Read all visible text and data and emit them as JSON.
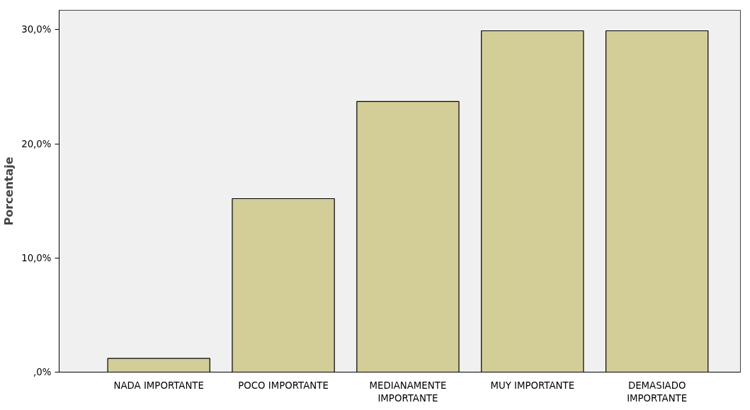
{
  "chart_data": {
    "type": "bar",
    "ylabel": "Porcentaje",
    "categories": [
      "NADA IMPORTANTE",
      "POCO IMPORTANTE",
      "MEDIANAMENTE\nIMPORTANTE",
      "MUY IMPORTANTE",
      "DEMASIADO\nIMPORTANTE"
    ],
    "values": [
      1.2,
      15.2,
      23.7,
      29.9,
      29.9
    ],
    "color": "#d3ce97",
    "ylim": [
      0,
      31.7
    ],
    "yticks": [
      {
        "value": 0,
        "label": ",0%"
      },
      {
        "value": 10,
        "label": "10,0%"
      },
      {
        "value": 20,
        "label": "20,0%"
      },
      {
        "value": 30,
        "label": "30,0%"
      }
    ],
    "grid": false
  }
}
